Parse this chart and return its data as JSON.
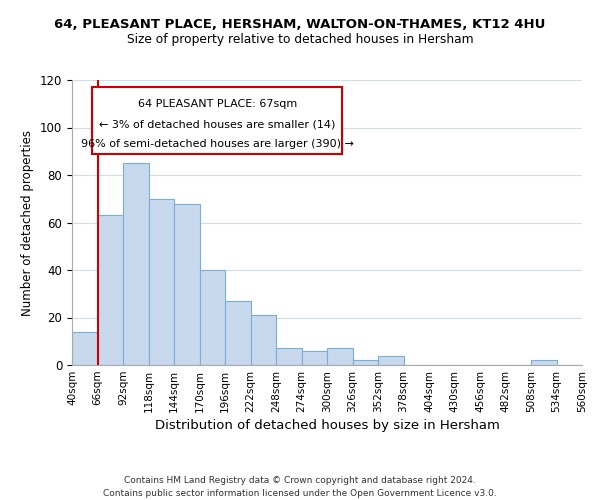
{
  "title": "64, PLEASANT PLACE, HERSHAM, WALTON-ON-THAMES, KT12 4HU",
  "subtitle": "Size of property relative to detached houses in Hersham",
  "xlabel": "Distribution of detached houses by size in Hersham",
  "ylabel": "Number of detached properties",
  "bar_color": "#c8d9ee",
  "bar_edge_color": "#7aafd4",
  "bin_edges": [
    40,
    66,
    92,
    118,
    144,
    170,
    196,
    222,
    248,
    274,
    300,
    326,
    352,
    378,
    404,
    430,
    456,
    482,
    508,
    534,
    560
  ],
  "bar_heights": [
    14,
    63,
    85,
    70,
    68,
    40,
    27,
    21,
    7,
    6,
    7,
    2,
    4,
    0,
    0,
    0,
    0,
    0,
    2,
    0
  ],
  "xtick_labels": [
    "40sqm",
    "66sqm",
    "92sqm",
    "118sqm",
    "144sqm",
    "170sqm",
    "196sqm",
    "222sqm",
    "248sqm",
    "274sqm",
    "300sqm",
    "326sqm",
    "352sqm",
    "378sqm",
    "404sqm",
    "430sqm",
    "456sqm",
    "482sqm",
    "508sqm",
    "534sqm",
    "560sqm"
  ],
  "ylim": [
    0,
    120
  ],
  "yticks": [
    0,
    20,
    40,
    60,
    80,
    100,
    120
  ],
  "ref_line_x": 67,
  "ref_line_color": "#cc0000",
  "ann_line1": "64 PLEASANT PLACE: 67sqm",
  "ann_line2": "← 3% of detached houses are smaller (14)",
  "ann_line3": "96% of semi-detached houses are larger (390) →",
  "footer_text": "Contains HM Land Registry data © Crown copyright and database right 2024.\nContains public sector information licensed under the Open Government Licence v3.0.",
  "background_color": "#ffffff",
  "grid_color": "#d0dcea"
}
